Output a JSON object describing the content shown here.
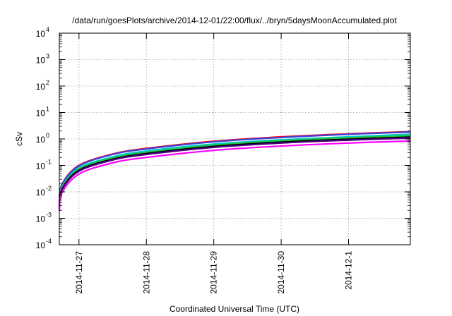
{
  "chart_data": {
    "type": "line",
    "title": "/data/run/goesPlots/archive/2014-12-01/22:00/flux/../bryn/5daysMoonAccumulated.plot",
    "xlabel": "Coordinated Universal Time (UTC)",
    "ylabel": "cSv",
    "y_scale": "log",
    "ylim": [
      0.0001,
      10000
    ],
    "xlim": [
      "2014-11-26 17:00",
      "2014-12-01 22:00"
    ],
    "grid": true,
    "legend": "none",
    "x_ticks": [
      "2014-11-27",
      "2014-11-28",
      "2014-11-29",
      "2014-11-30",
      "2014-12-1"
    ],
    "y_ticks": [
      {
        "base": "10",
        "exp": "-4"
      },
      {
        "base": "10",
        "exp": "-3"
      },
      {
        "base": "10",
        "exp": "-2"
      },
      {
        "base": "10",
        "exp": "-1"
      },
      {
        "base": "10",
        "exp": "0"
      },
      {
        "base": "10",
        "exp": "1"
      },
      {
        "base": "10",
        "exp": "2"
      },
      {
        "base": "10",
        "exp": "3"
      },
      {
        "base": "10",
        "exp": "4"
      }
    ],
    "x": [
      "2014-11-26 17:00",
      "2014-11-26 18:00",
      "2014-11-27 00:00",
      "2014-11-27 12:00",
      "2014-11-28 00:00",
      "2014-11-29 00:00",
      "2014-11-30 00:00",
      "2014-12-01 00:00",
      "2014-12-01 22:00"
    ],
    "series": [
      {
        "color": "#ff0000",
        "values": [
          0.004,
          0.02,
          0.1,
          0.27,
          0.44,
          0.82,
          1.2,
          1.56,
          1.9
        ]
      },
      {
        "color": "#4040d8",
        "values": [
          0.0038,
          0.019,
          0.095,
          0.26,
          0.42,
          0.78,
          1.14,
          1.5,
          1.83
        ]
      },
      {
        "color": "#00c8c8",
        "values": [
          0.0032,
          0.016,
          0.08,
          0.21,
          0.35,
          0.64,
          0.93,
          1.2,
          1.5
        ]
      },
      {
        "color": "#20c040",
        "values": [
          0.0029,
          0.015,
          0.072,
          0.19,
          0.31,
          0.58,
          0.85,
          1.1,
          1.33
        ]
      },
      {
        "color": "#000000",
        "values": [
          0.0026,
          0.013,
          0.065,
          0.17,
          0.28,
          0.52,
          0.76,
          0.98,
          1.18
        ]
      },
      {
        "color": "#4b0082",
        "values": [
          0.0024,
          0.012,
          0.06,
          0.16,
          0.26,
          0.48,
          0.7,
          0.9,
          1.08
        ]
      },
      {
        "color": "#ff00ff",
        "values": [
          0.0019,
          0.0095,
          0.047,
          0.125,
          0.2,
          0.37,
          0.54,
          0.7,
          0.84
        ]
      }
    ]
  }
}
